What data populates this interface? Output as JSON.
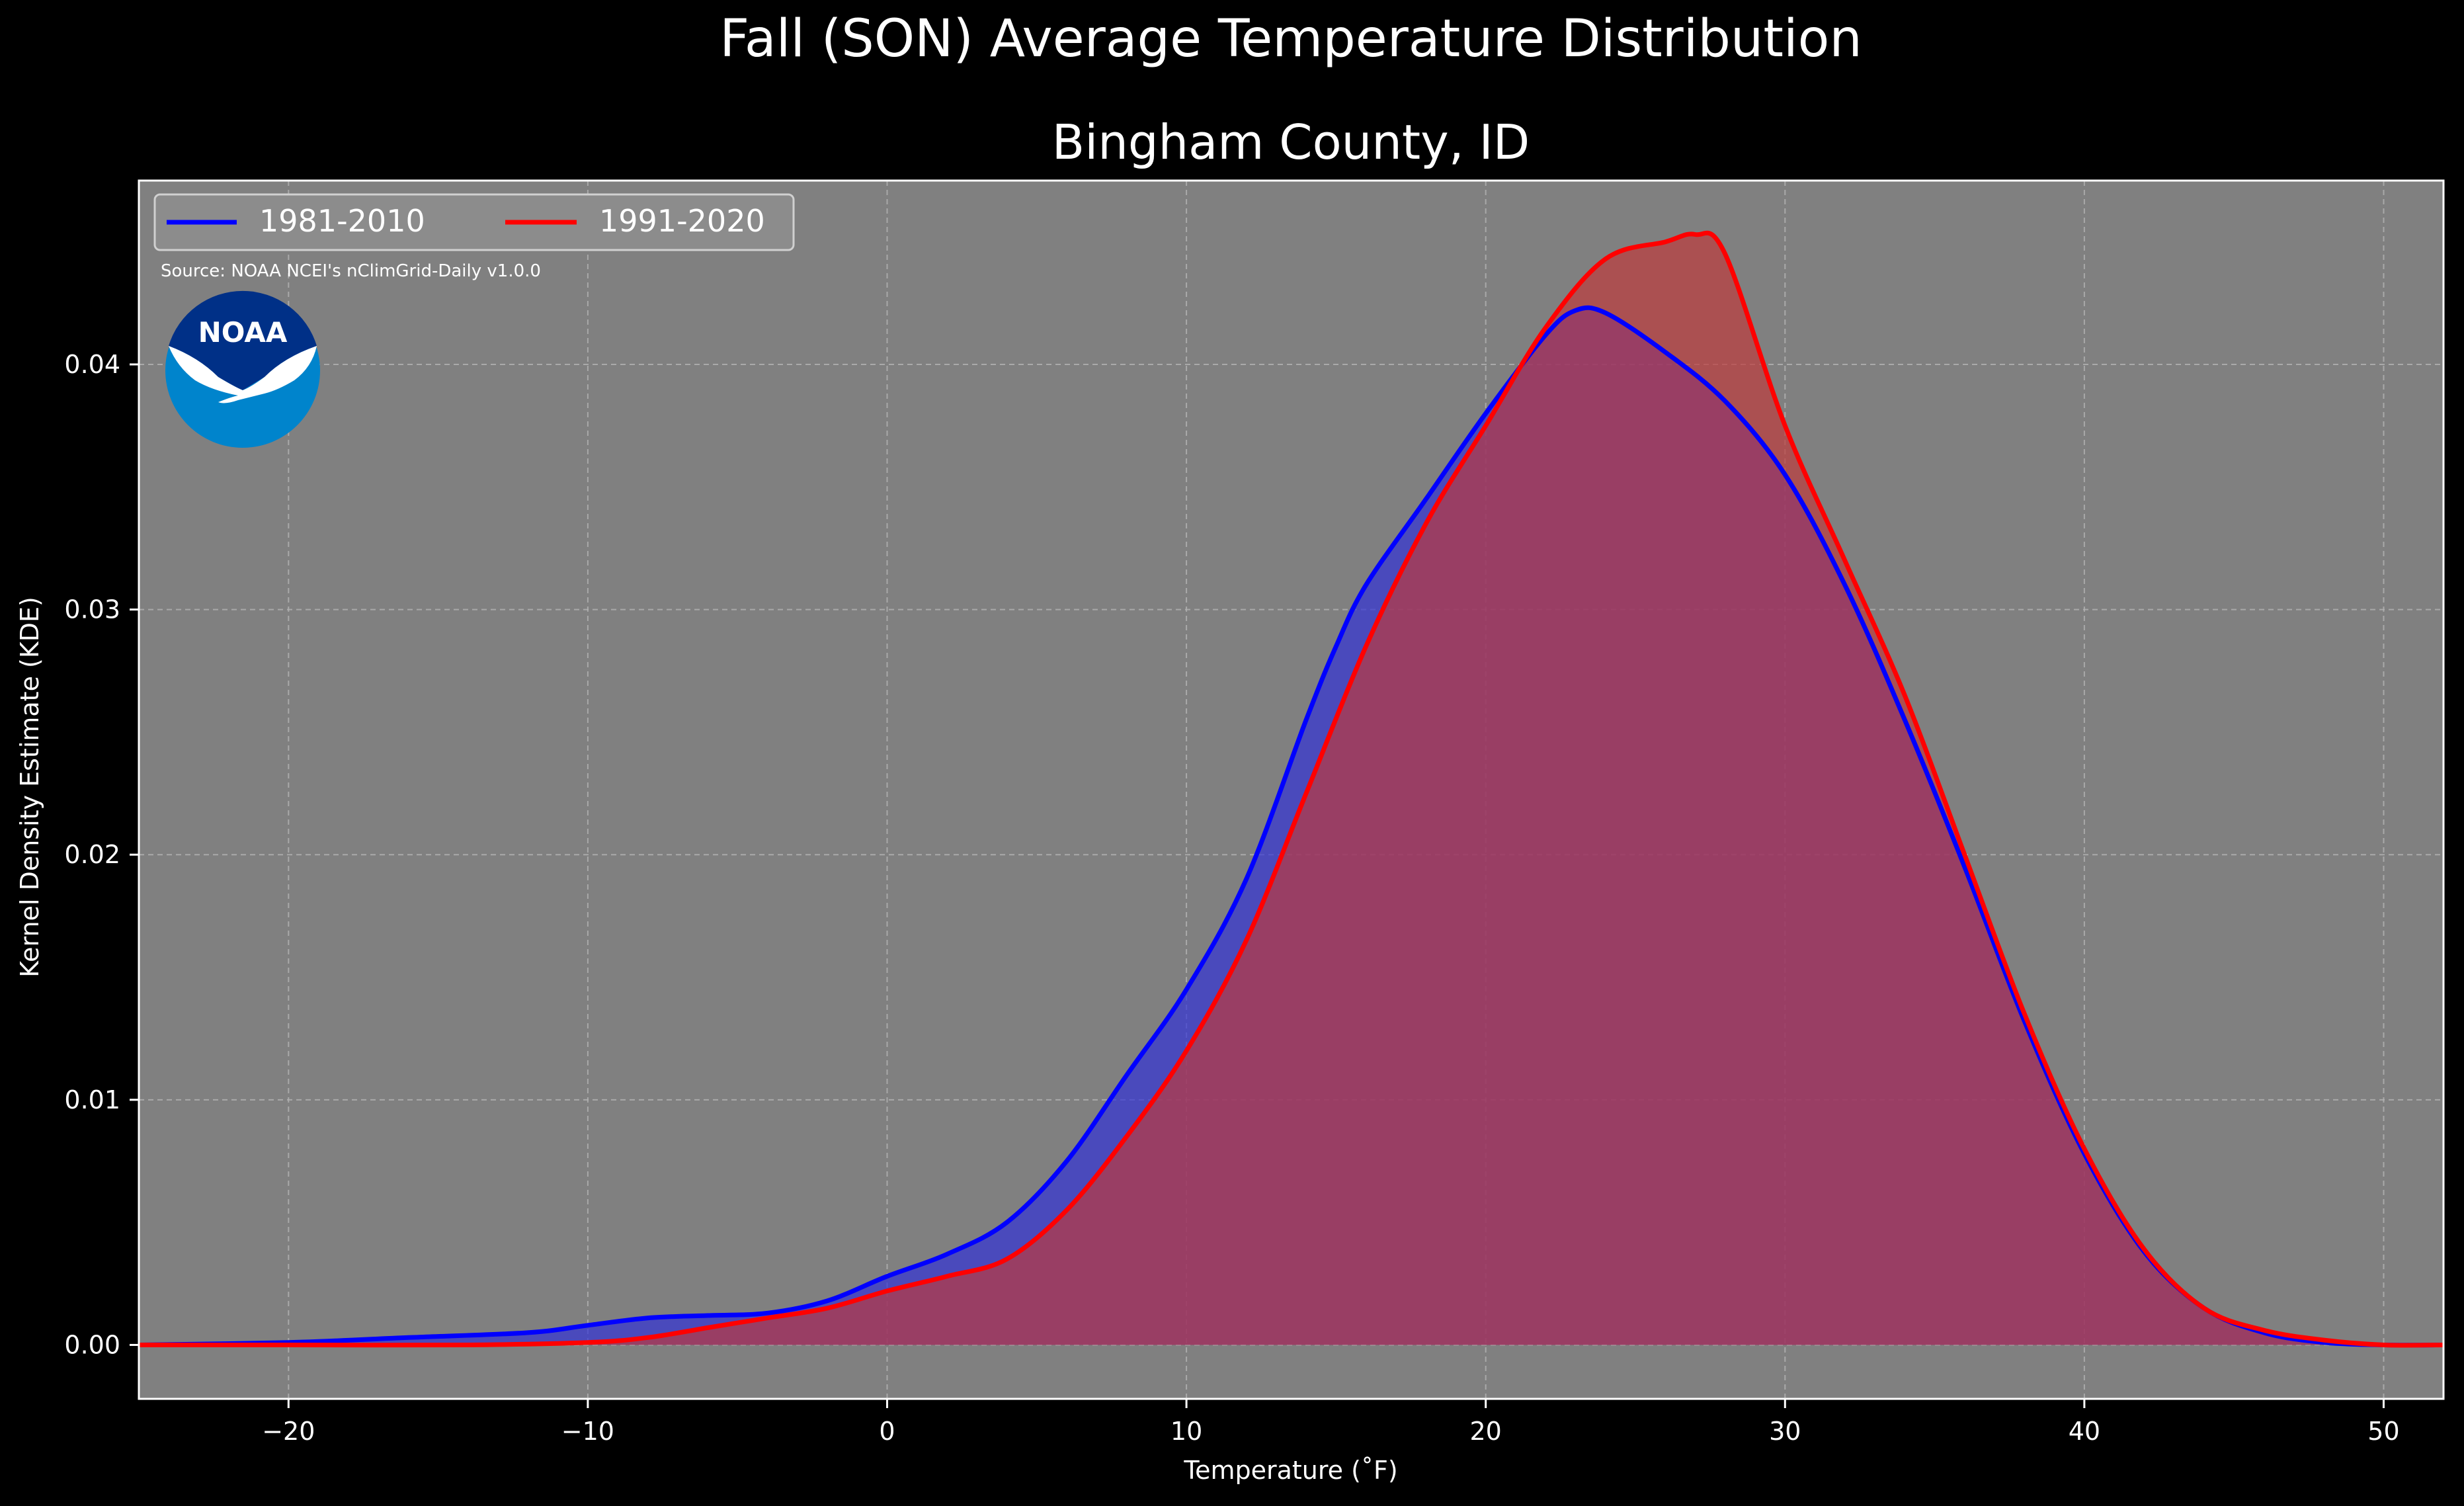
{
  "chart_data": {
    "type": "area",
    "title": "Fall (SON) Average Temperature Distribution",
    "subtitle": "Bingham County, ID",
    "xlabel": "Temperature (˚F)",
    "ylabel": "Kernel Density Estimate (KDE)",
    "xlim": [
      -25,
      52
    ],
    "ylim": [
      -0.0022,
      0.0475
    ],
    "xticks": [
      -20,
      -10,
      0,
      10,
      20,
      30,
      40,
      50
    ],
    "xtick_labels": [
      "−20",
      "−10",
      "0",
      "10",
      "20",
      "30",
      "40",
      "50"
    ],
    "yticks": [
      0.0,
      0.01,
      0.02,
      0.03,
      0.04
    ],
    "ytick_labels": [
      "0.00",
      "0.01",
      "0.02",
      "0.03",
      "0.04"
    ],
    "grid": true,
    "legend_position": "top-left",
    "source_note": "Source: NOAA NCEI's nClimGrid-Daily v1.0.0",
    "logo_text": "NOAA",
    "series": [
      {
        "name": "1981-2010",
        "color": "#0000ff",
        "fill": "#3030d8",
        "x": [
          -25,
          -20,
          -16,
          -12,
          -10,
          -8,
          -6,
          -4,
          -2,
          0,
          2,
          4,
          6,
          8,
          10,
          12,
          14,
          15,
          16,
          18,
          20,
          22,
          23,
          24,
          26,
          28,
          30,
          32,
          34,
          36,
          38,
          40,
          42,
          44,
          46,
          48,
          50,
          52
        ],
        "y": [
          0.0,
          0.0001,
          0.0003,
          0.0005,
          0.0008,
          0.0011,
          0.0012,
          0.0013,
          0.0018,
          0.0028,
          0.0037,
          0.005,
          0.0075,
          0.011,
          0.0145,
          0.019,
          0.0255,
          0.0285,
          0.031,
          0.0345,
          0.038,
          0.0412,
          0.0422,
          0.0421,
          0.0405,
          0.0385,
          0.0355,
          0.031,
          0.0255,
          0.0195,
          0.0132,
          0.0078,
          0.0038,
          0.0015,
          0.0005,
          0.0001,
          0.0,
          0.0
        ]
      },
      {
        "name": "1991-2020",
        "color": "#ff0000",
        "fill": "#c0393b",
        "x": [
          -25,
          -20,
          -14,
          -10,
          -8,
          -6,
          -4,
          -2,
          0,
          2,
          4,
          6,
          8,
          10,
          12,
          14,
          16,
          18,
          20,
          22,
          24,
          26,
          27,
          28,
          30,
          32,
          34,
          36,
          38,
          40,
          42,
          44,
          46,
          48,
          50,
          52
        ],
        "y": [
          0.0,
          0.0,
          0.0,
          0.0001,
          0.0003,
          0.0007,
          0.0011,
          0.0015,
          0.0022,
          0.0028,
          0.0035,
          0.0055,
          0.0085,
          0.012,
          0.0165,
          0.0225,
          0.0285,
          0.0335,
          0.0375,
          0.0415,
          0.0443,
          0.045,
          0.0453,
          0.0445,
          0.0375,
          0.032,
          0.0265,
          0.02,
          0.0135,
          0.008,
          0.0039,
          0.0015,
          0.0006,
          0.0002,
          0.0,
          0.0
        ]
      }
    ]
  }
}
